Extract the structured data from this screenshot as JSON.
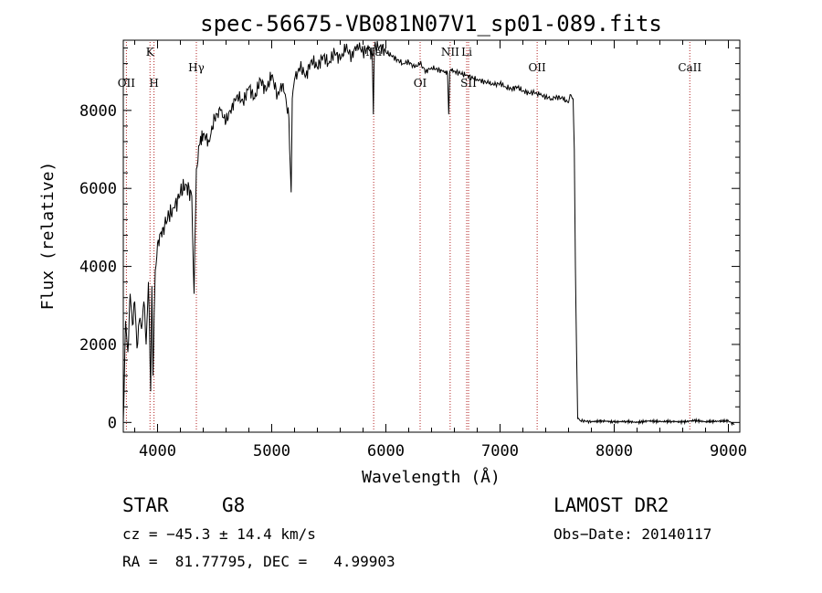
{
  "chart_data": {
    "type": "line",
    "title": "spec-56675-VB081N07V1_sp01-089.fits",
    "xlabel": "Wavelength (Å)",
    "ylabel": "Flux (relative)",
    "xlim": [
      3700,
      9100
    ],
    "ylim": [
      -250,
      9800
    ],
    "x_ticks": [
      4000,
      5000,
      6000,
      7000,
      8000,
      9000
    ],
    "y_ticks": [
      0,
      2000,
      4000,
      6000,
      8000
    ],
    "grid": false,
    "series": [
      {
        "name": "flux",
        "x": [
          3700,
          3720,
          3740,
          3760,
          3780,
          3800,
          3820,
          3840,
          3860,
          3880,
          3900,
          3920,
          3940,
          3950,
          3960,
          3970,
          3980,
          4000,
          4050,
          4100,
          4150,
          4200,
          4250,
          4300,
          4320,
          4340,
          4360,
          4400,
          4450,
          4500,
          4550,
          4600,
          4650,
          4700,
          4750,
          4800,
          4850,
          4900,
          4950,
          5000,
          5050,
          5100,
          5150,
          5170,
          5180,
          5200,
          5250,
          5300,
          5350,
          5400,
          5450,
          5500,
          5550,
          5600,
          5650,
          5700,
          5750,
          5800,
          5850,
          5880,
          5890,
          5900,
          5950,
          6000,
          6050,
          6100,
          6150,
          6200,
          6250,
          6300,
          6350,
          6400,
          6450,
          6500,
          6540,
          6550,
          6560,
          6570,
          6600,
          6650,
          6700,
          6750,
          6800,
          6850,
          6900,
          6950,
          7000,
          7050,
          7100,
          7150,
          7200,
          7250,
          7300,
          7350,
          7400,
          7450,
          7500,
          7550,
          7600,
          7620,
          7640,
          7650,
          7660,
          7670,
          7680,
          7700,
          7750,
          7800,
          7900,
          8000,
          8100,
          8200,
          8300,
          8400,
          8500,
          8600,
          8700,
          8800,
          8900,
          9000,
          9050
        ],
        "y": [
          0,
          2600,
          1800,
          3300,
          2500,
          3100,
          1900,
          2600,
          2400,
          3100,
          2000,
          3600,
          800,
          3500,
          1200,
          2800,
          3900,
          4600,
          5000,
          5300,
          5500,
          5900,
          6100,
          5800,
          3300,
          6500,
          7100,
          7400,
          7200,
          7800,
          8000,
          7700,
          8100,
          8400,
          8200,
          8600,
          8300,
          8800,
          8500,
          8900,
          8400,
          8700,
          7800,
          5900,
          8300,
          8800,
          9100,
          8900,
          9300,
          9100,
          9400,
          9200,
          9500,
          9300,
          9600,
          9400,
          9700,
          9500,
          9600,
          9400,
          7900,
          9600,
          9650,
          9500,
          9400,
          9300,
          9200,
          9250,
          9100,
          9200,
          9000,
          9100,
          9050,
          9000,
          8950,
          7900,
          9000,
          9050,
          9000,
          8950,
          8900,
          8850,
          8800,
          8750,
          8700,
          8650,
          8700,
          8600,
          8550,
          8600,
          8500,
          8450,
          8450,
          8400,
          8350,
          8300,
          8350,
          8300,
          8200,
          8400,
          8300,
          7000,
          4000,
          1800,
          100,
          50,
          30,
          20,
          40,
          10,
          30,
          0,
          40,
          20,
          30,
          10,
          50,
          20,
          30,
          40,
          -60
        ]
      }
    ],
    "line_markers": [
      {
        "label": "OII",
        "x": 3727,
        "row": "mid"
      },
      {
        "label": "K",
        "x": 3934,
        "row": "top"
      },
      {
        "label": "H",
        "x": 3969,
        "row": "mid"
      },
      {
        "label": "Hγ",
        "x": 4340,
        "row": "upper"
      },
      {
        "label": "Na",
        "x": 5893,
        "row": "top"
      },
      {
        "label": "OI",
        "x": 6300,
        "row": "mid"
      },
      {
        "label": "NII",
        "x": 6563,
        "row": "top"
      },
      {
        "label": "Li",
        "x": 6708,
        "row": "top"
      },
      {
        "label": "SII",
        "x": 6724,
        "row": "mid"
      },
      {
        "label": "OII",
        "x": 7325,
        "row": "upper"
      },
      {
        "label": "CaII",
        "x": 8662,
        "row": "upper"
      }
    ]
  },
  "info": {
    "class_label": "STAR",
    "subclass": "G8",
    "survey": "LAMOST DR2",
    "cz": "cz = −45.3 ± 14.4 km/s",
    "obs_date": "Obs−Date: 20140117",
    "coords": "RA =  81.77795, DEC =   4.99903"
  }
}
